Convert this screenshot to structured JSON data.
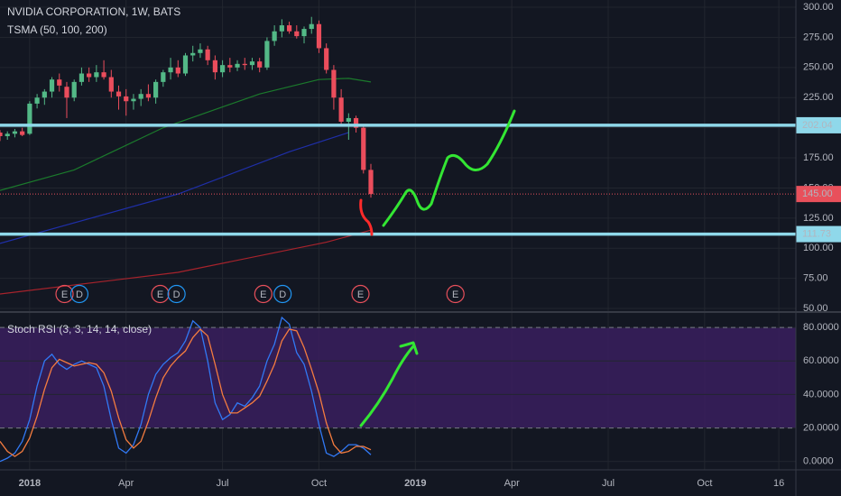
{
  "chart_data": [
    {
      "type": "candlestick",
      "title": "NVIDIA CORPORATION, 1W, BATS",
      "subtitle": "TSMA (50, 100, 200)",
      "x": [
        -4,
        -3,
        -2,
        -1,
        0,
        1,
        2,
        3,
        4,
        5,
        6,
        7,
        8,
        9,
        10,
        11,
        12,
        13,
        14,
        15,
        16,
        17,
        18,
        19,
        20,
        21,
        22,
        23,
        24,
        25,
        26,
        27,
        28,
        29,
        30,
        31,
        32,
        33,
        34,
        35,
        36,
        37,
        38,
        39,
        40,
        41,
        42,
        43,
        44,
        45,
        46
      ],
      "open": [
        196,
        193,
        195,
        197,
        195,
        220,
        225,
        230,
        240,
        234,
        225,
        238,
        245,
        242,
        246,
        242,
        230,
        226,
        222,
        224,
        228,
        225,
        238,
        246,
        250,
        245,
        260,
        262,
        265,
        256,
        246,
        252,
        250,
        253,
        252,
        255,
        250,
        272,
        280,
        285,
        280,
        276,
        282,
        286,
        266,
        248,
        225,
        205,
        208,
        200,
        165
      ],
      "high": [
        198,
        197,
        199,
        200,
        222,
        228,
        232,
        242,
        245,
        238,
        240,
        250,
        250,
        252,
        256,
        248,
        235,
        232,
        228,
        232,
        236,
        240,
        248,
        258,
        256,
        262,
        268,
        270,
        268,
        260,
        256,
        258,
        256,
        258,
        258,
        258,
        275,
        285,
        290,
        288,
        285,
        284,
        292,
        289,
        270,
        252,
        232,
        212,
        210,
        203,
        170
      ],
      "low": [
        189,
        190,
        192,
        193,
        194,
        216,
        219,
        225,
        230,
        208,
        222,
        235,
        238,
        238,
        240,
        225,
        215,
        210,
        215,
        218,
        222,
        220,
        234,
        240,
        242,
        243,
        255,
        258,
        252,
        240,
        242,
        246,
        247,
        248,
        248,
        246,
        248,
        268,
        275,
        278,
        274,
        270,
        278,
        262,
        245,
        215,
        202,
        190,
        196,
        162,
        142
      ],
      "close": [
        193,
        195,
        197,
        194,
        220,
        225,
        230,
        240,
        235,
        225,
        238,
        245,
        242,
        246,
        242,
        230,
        226,
        222,
        224,
        228,
        225,
        238,
        246,
        250,
        245,
        260,
        262,
        265,
        256,
        246,
        252,
        250,
        253,
        252,
        255,
        250,
        272,
        280,
        285,
        280,
        276,
        282,
        286,
        266,
        248,
        225,
        205,
        208,
        200,
        165,
        145
      ],
      "up_color": "#53b987",
      "down_color": "#eb4d5c",
      "series": [
        {
          "color": "#1b7a2c",
          "x": [
            -4,
            6,
            18,
            31,
            39,
            43,
            46
          ],
          "values": [
            148,
            165,
            200,
            228,
            240,
            241,
            238
          ]
        },
        {
          "color": "#1f2fa8",
          "x": [
            -4,
            20,
            35,
            43
          ],
          "values": [
            104,
            145,
            180,
            196
          ]
        },
        {
          "color": "#a8232c",
          "x": [
            -4,
            20,
            40,
            46
          ],
          "values": [
            62,
            80,
            105,
            115
          ]
        }
      ],
      "price_lines": [
        {
          "value": 202.04,
          "color": "#8fd8ea"
        },
        {
          "value": 111.73,
          "color": "#8fd8ea"
        },
        {
          "value": 145,
          "label": "145.00",
          "color": "#e8505b"
        }
      ],
      "events": [
        {
          "label": "E",
          "x": 4.7,
          "color": "#e8505b"
        },
        {
          "label": "D",
          "x": 6.7,
          "color": "#2196f3"
        },
        {
          "label": "E",
          "x": 17.6,
          "color": "#e8505b"
        },
        {
          "label": "D",
          "x": 19.8,
          "color": "#2196f3"
        },
        {
          "label": "E",
          "x": 31.5,
          "color": "#e8505b"
        },
        {
          "label": "D",
          "x": 34.1,
          "color": "#2196f3"
        },
        {
          "label": "E",
          "x": 44.6,
          "color": "#e8505b"
        },
        {
          "label": "E",
          "x": 57.4,
          "color": "#e8505b"
        }
      ],
      "xlim": [
        -4,
        103.3
      ],
      "xticks": [
        {
          "value": 0,
          "label": "2018"
        },
        {
          "value": 13,
          "label": "Apr"
        },
        {
          "value": 26,
          "label": "Jul"
        },
        {
          "value": 39,
          "label": "Oct"
        },
        {
          "value": 52,
          "label": "2019"
        },
        {
          "value": 65,
          "label": "Apr"
        },
        {
          "value": 78,
          "label": "Jul"
        },
        {
          "value": 91,
          "label": "Oct"
        },
        {
          "value": 101,
          "label": "16"
        }
      ],
      "ylim": [
        47.8,
        306
      ],
      "yticks": [
        {
          "value": 50,
          "label": "50.00"
        },
        {
          "value": 75,
          "label": "75.00"
        },
        {
          "value": 100,
          "label": "100.00"
        },
        {
          "value": 125,
          "label": "125.00"
        },
        {
          "value": 150,
          "label": "150.00"
        },
        {
          "value": 175,
          "label": "175.00"
        },
        {
          "value": 200,
          "label": "200.00"
        },
        {
          "value": 225,
          "label": "225.00"
        },
        {
          "value": 250,
          "label": "250.00"
        },
        {
          "value": 275,
          "label": "275.00"
        },
        {
          "value": 300,
          "label": "300.00"
        }
      ],
      "grid": true
    },
    {
      "type": "line",
      "title": "Stoch RSI (3, 3, 14, 14, close)",
      "x": [
        -4,
        -3,
        -2,
        -1,
        0,
        1,
        2,
        3,
        4,
        5,
        6,
        7,
        8,
        9,
        10,
        11,
        12,
        13,
        14,
        15,
        16,
        17,
        18,
        19,
        20,
        21,
        22,
        23,
        24,
        25,
        26,
        27,
        28,
        29,
        30,
        31,
        32,
        33,
        34,
        35,
        36,
        37,
        38,
        39,
        40,
        41,
        42,
        43,
        44,
        45,
        46
      ],
      "series": [
        {
          "color": "#3179f5",
          "values": [
            0,
            2,
            5,
            12,
            25,
            45,
            60,
            64,
            58,
            55,
            58,
            60,
            58,
            56,
            45,
            25,
            8,
            5,
            10,
            22,
            40,
            52,
            58,
            62,
            65,
            72,
            84,
            80,
            60,
            35,
            25,
            28,
            35,
            33,
            38,
            45,
            60,
            70,
            86,
            82,
            65,
            58,
            42,
            22,
            5,
            3,
            6,
            10,
            10,
            8,
            4
          ]
        },
        {
          "color": "#f57c3f",
          "values": [
            12,
            6,
            3,
            6,
            14,
            27,
            43,
            56,
            61,
            59,
            57,
            58,
            59,
            58,
            53,
            42,
            26,
            13,
            8,
            12,
            24,
            38,
            50,
            57,
            62,
            66,
            74,
            79,
            75,
            58,
            40,
            29,
            29,
            32,
            35,
            39,
            48,
            58,
            72,
            79,
            78,
            68,
            55,
            41,
            23,
            10,
            5,
            6,
            9,
            9,
            7
          ]
        }
      ],
      "band": [
        20,
        80
      ],
      "band_color": "#3a1f5e",
      "ylim": [
        -5,
        88.7
      ],
      "yticks": [
        {
          "value": 0,
          "label": "0.0000"
        },
        {
          "value": 20,
          "label": "20.0000"
        },
        {
          "value": 40,
          "label": "40.0000"
        },
        {
          "value": 60,
          "label": "60.0000"
        },
        {
          "value": 80,
          "label": "80.0000"
        }
      ],
      "grid": true
    }
  ]
}
